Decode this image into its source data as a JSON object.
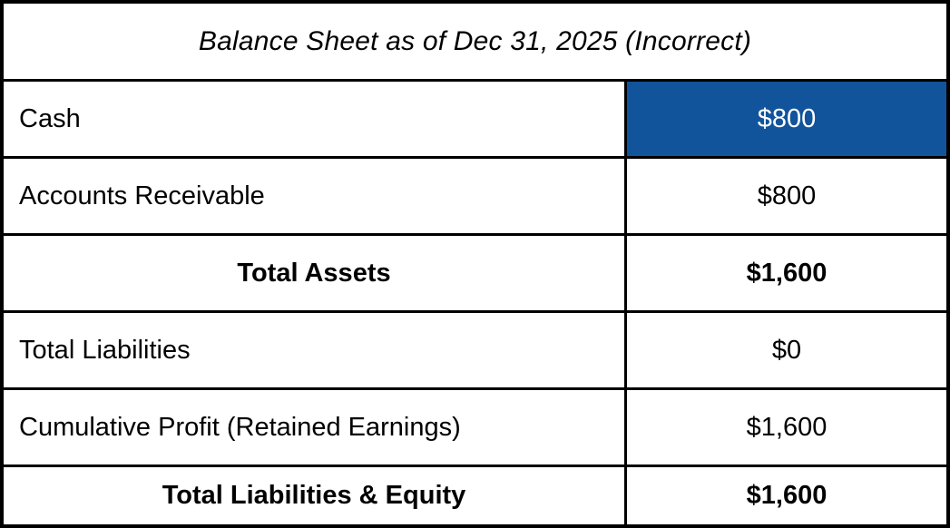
{
  "table": {
    "title": "Balance Sheet as of Dec 31, 2025 (Incorrect)",
    "rows": [
      {
        "label": "Cash",
        "value": "$800",
        "bold": false,
        "highlight": true
      },
      {
        "label": "Accounts Receivable",
        "value": "$800",
        "bold": false,
        "highlight": false
      },
      {
        "label": "Total Assets",
        "value": "$1,600",
        "bold": true,
        "highlight": false
      },
      {
        "label": "Total Liabilities",
        "value": "$0",
        "bold": false,
        "highlight": false
      },
      {
        "label": "Cumulative Profit (Retained Earnings)",
        "value": "$1,600",
        "bold": false,
        "highlight": false
      },
      {
        "label": "Total Liabilities & Equity",
        "value": "$1,600",
        "bold": true,
        "highlight": false
      }
    ],
    "colors": {
      "highlight_bg": "#11549B",
      "highlight_text": "#FFFFFF",
      "border": "#000000",
      "text": "#000000",
      "background": "#FFFFFF"
    }
  }
}
